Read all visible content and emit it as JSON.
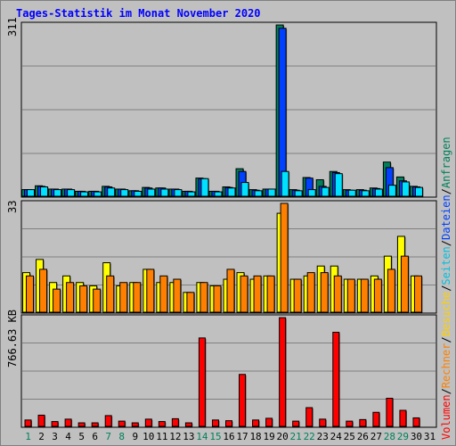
{
  "title": "Tages-Statistik im Monat November 2020",
  "colors": {
    "background": "#c0c0c0",
    "title": "#0000ff",
    "anfragen": "#00805a",
    "dateien": "#0040ff",
    "seiten": "#00e0ff",
    "besuche": "#ffff00",
    "rechner": "#ff8000",
    "volumen": "#ff0000",
    "weekend_label": "#00805a",
    "weekday_label": "#000000"
  },
  "legend": {
    "volumen": "Volumen",
    "rechner": "Rechner",
    "besuche": "Besuche",
    "seiten": "Seiten",
    "dateien": "Dateien",
    "anfragen": "Anfragen",
    "separator": "/"
  },
  "chart_data": [
    {
      "type": "bar",
      "title": "Tages-Statistik im Monat November 2020",
      "y_axis_max_label": "311",
      "ylim": [
        0,
        311
      ],
      "categories": [
        "1",
        "2",
        "3",
        "4",
        "5",
        "6",
        "7",
        "8",
        "9",
        "10",
        "11",
        "12",
        "13",
        "14",
        "15",
        "16",
        "17",
        "18",
        "19",
        "20",
        "21",
        "22",
        "23",
        "24",
        "25",
        "26",
        "27",
        "28",
        "29",
        "30",
        "31"
      ],
      "weekend_days": [
        "1",
        "7",
        "8",
        "14",
        "15",
        "21",
        "22",
        "28",
        "29"
      ],
      "series": [
        {
          "name": "Anfragen",
          "values": [
            12,
            19,
            13,
            13,
            9,
            9,
            18,
            13,
            10,
            16,
            15,
            13,
            9,
            33,
            9,
            17,
            50,
            12,
            13,
            311,
            12,
            34,
            30,
            45,
            12,
            12,
            15,
            62,
            35,
            18,
            0
          ]
        },
        {
          "name": "Dateien",
          "values": [
            12,
            18,
            13,
            13,
            9,
            9,
            17,
            13,
            10,
            15,
            15,
            13,
            9,
            32,
            9,
            16,
            45,
            11,
            13,
            305,
            11,
            33,
            18,
            43,
            11,
            11,
            14,
            52,
            28,
            17,
            0
          ]
        },
        {
          "name": "Seiten",
          "values": [
            12,
            17,
            12,
            12,
            8,
            8,
            15,
            12,
            9,
            13,
            13,
            12,
            8,
            32,
            8,
            15,
            25,
            10,
            13,
            45,
            10,
            12,
            16,
            41,
            11,
            10,
            13,
            20,
            26,
            16,
            0
          ]
        }
      ]
    },
    {
      "type": "bar",
      "y_axis_max_label": "33",
      "ylim": [
        0,
        33
      ],
      "categories": [
        "1",
        "2",
        "3",
        "4",
        "5",
        "6",
        "7",
        "8",
        "9",
        "10",
        "11",
        "12",
        "13",
        "14",
        "15",
        "16",
        "17",
        "18",
        "19",
        "20",
        "21",
        "22",
        "23",
        "24",
        "25",
        "26",
        "27",
        "28",
        "29",
        "30",
        "31"
      ],
      "series": [
        {
          "name": "Besuche",
          "values": [
            12,
            16,
            9,
            11,
            9,
            8,
            15,
            8,
            9,
            13,
            9,
            9,
            6,
            9,
            8,
            10,
            12,
            10,
            11,
            30,
            10,
            11,
            14,
            14,
            10,
            10,
            11,
            17,
            23,
            11,
            0
          ]
        },
        {
          "name": "Rechner",
          "values": [
            11,
            13,
            7,
            9,
            8,
            7,
            11,
            9,
            9,
            13,
            11,
            10,
            6,
            9,
            8,
            13,
            11,
            11,
            11,
            33,
            10,
            12,
            12,
            11,
            10,
            10,
            10,
            13,
            17,
            11,
            0
          ]
        }
      ]
    },
    {
      "type": "bar",
      "y_axis_max_label": "766.63 KB",
      "ylim": [
        0,
        766.63
      ],
      "categories": [
        "1",
        "2",
        "3",
        "4",
        "5",
        "6",
        "7",
        "8",
        "9",
        "10",
        "11",
        "12",
        "13",
        "14",
        "15",
        "16",
        "17",
        "18",
        "19",
        "20",
        "21",
        "22",
        "23",
        "24",
        "25",
        "26",
        "27",
        "28",
        "29",
        "30",
        "31"
      ],
      "series": [
        {
          "name": "Volumen",
          "values": [
            45,
            79,
            34,
            51,
            25,
            25,
            76,
            37,
            25,
            51,
            34,
            54,
            25,
            623,
            45,
            40,
            366,
            45,
            57,
            766,
            37,
            132,
            51,
            663,
            37,
            48,
            99,
            198,
            113,
            60,
            0
          ]
        }
      ]
    }
  ]
}
